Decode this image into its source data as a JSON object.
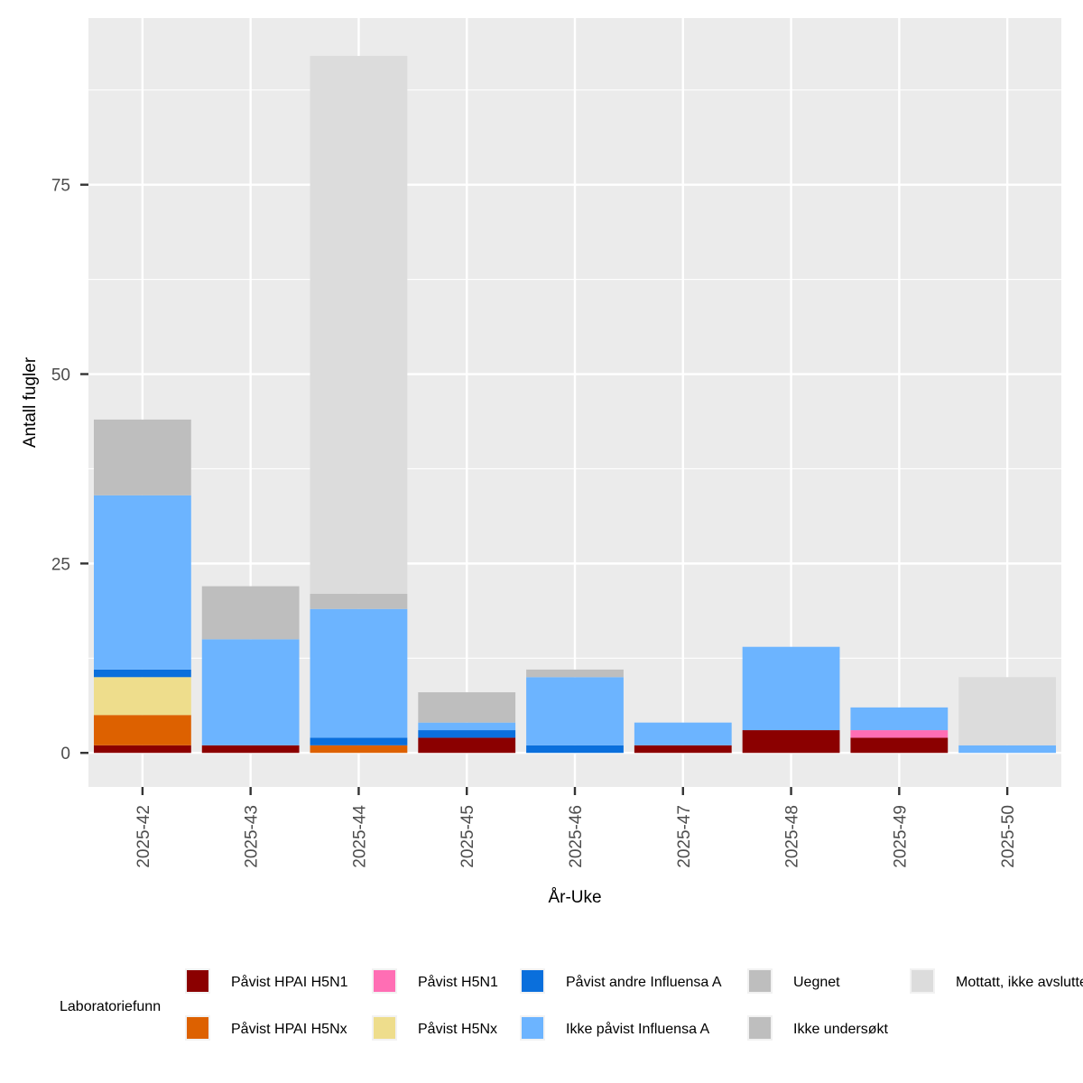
{
  "chart_data": {
    "type": "bar",
    "stacked": true,
    "title": "",
    "xlabel": "År-Uke",
    "ylabel": "Antall fugler",
    "ylim": [
      -4.5,
      97
    ],
    "yticks": [
      0,
      25,
      50,
      75
    ],
    "grid": true,
    "categories": [
      "2025-42",
      "2025-43",
      "2025-44",
      "2025-45",
      "2025-46",
      "2025-47",
      "2025-48",
      "2025-49",
      "2025-50"
    ],
    "series": [
      {
        "name": "Påvist HPAI H5N1",
        "color": "#8B0000",
        "values": [
          1,
          1,
          0,
          2,
          0,
          1,
          3,
          2,
          0
        ]
      },
      {
        "name": "Påvist HPAI H5Nx",
        "color": "#DD6100",
        "values": [
          4,
          0,
          1,
          0,
          0,
          0,
          0,
          0,
          0
        ]
      },
      {
        "name": "Påvist H5N1",
        "color": "#FF6EB4",
        "values": [
          0,
          0,
          0,
          0,
          0,
          0,
          0,
          1,
          0
        ]
      },
      {
        "name": "Påvist H5Nx",
        "color": "#EEDD8C",
        "values": [
          5,
          0,
          0,
          0,
          0,
          0,
          0,
          0,
          0
        ]
      },
      {
        "name": "Påvist andre Influensa A",
        "color": "#0A6FDC",
        "values": [
          1,
          0,
          1,
          1,
          1,
          0,
          0,
          0,
          0
        ]
      },
      {
        "name": "Ikke påvist Influensa A",
        "color": "#6CB4FF",
        "values": [
          23,
          14,
          17,
          1,
          9,
          3,
          11,
          3,
          1
        ]
      },
      {
        "name": "Uegnet",
        "color": "#BEBEBE",
        "values": [
          0,
          0,
          0,
          0,
          0,
          0,
          0,
          0,
          0
        ]
      },
      {
        "name": "Ikke undersøkt",
        "color": "#BEBEBE",
        "values": [
          10,
          7,
          2,
          4,
          1,
          0,
          0,
          0,
          0
        ]
      },
      {
        "name": "Mottatt, ikke avsluttet",
        "color": "#DCDCDC",
        "values": [
          0,
          0,
          71,
          0,
          0,
          0,
          0,
          0,
          9
        ]
      }
    ],
    "legend": {
      "title": "Laboratoriefunn",
      "position": "bottom",
      "columns": [
        [
          "Påvist HPAI H5N1",
          "Påvist HPAI H5Nx"
        ],
        [
          "Påvist H5N1",
          "Påvist H5Nx"
        ],
        [
          "Påvist andre Influensa A",
          "Ikke påvist Influensa A"
        ],
        [
          "Uegnet",
          "Ikke undersøkt"
        ],
        [
          "Mottatt, ikke avsluttet"
        ]
      ]
    },
    "panel_background": "#EBEBEB",
    "grid_color": "#FFFFFF"
  }
}
